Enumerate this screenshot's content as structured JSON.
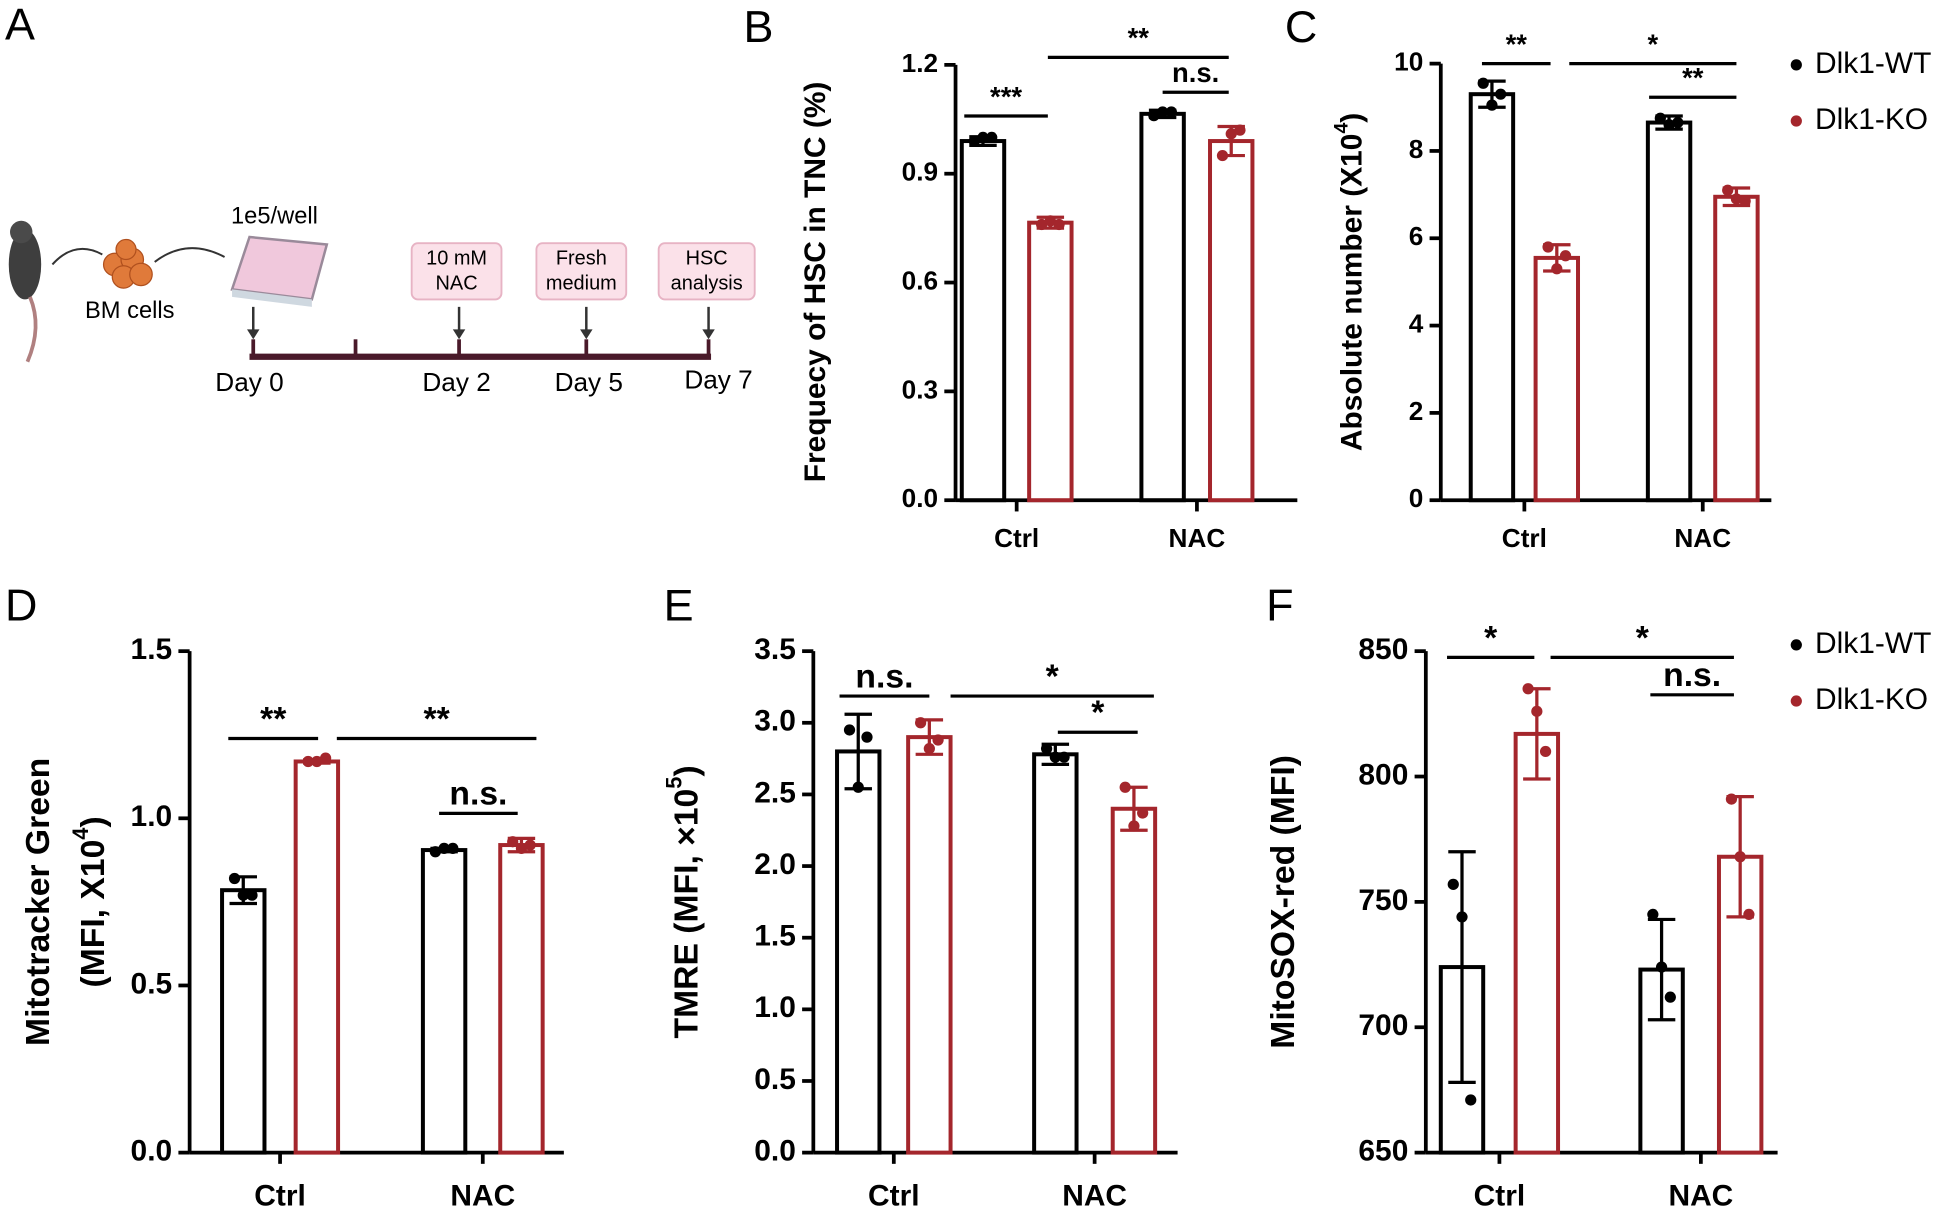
{
  "diagram": {
    "label": "A",
    "plate": "1e5/well",
    "cells": "BM cells",
    "steps": [
      [
        "10 mM",
        "NAC"
      ],
      [
        "Fresh",
        "medium"
      ],
      [
        "HSC",
        "analysis"
      ]
    ],
    "days": [
      "Day 0",
      "Day 2",
      "Day 5",
      "Day 7"
    ]
  },
  "chart_data": [
    {
      "type": "bar",
      "panel": "B",
      "ylabel": [
        [
          "Frequecy of HSC in TNC (%)"
        ]
      ],
      "categories": [
        "Ctrl",
        "NAC"
      ],
      "ylim": [
        0,
        1.2
      ],
      "yticks": [
        {
          "value": 0,
          "label": "0.0"
        },
        0.3,
        0.6,
        0.9,
        1.2
      ],
      "series": [
        {
          "color": "#000000",
          "values": [
            0.99,
            1.065
          ],
          "errors": [
            0.012,
            0.01
          ],
          "points": [
            [
              0.99,
              1.0,
              1.0
            ],
            [
              1.06,
              1.07,
              1.07
            ]
          ]
        },
        {
          "color": "#a4262c",
          "values": [
            0.765,
            0.99
          ],
          "errors": [
            0.015,
            0.04
          ],
          "points": [
            [
              0.76,
              0.77,
              0.76
            ],
            [
              0.95,
              1.01,
              1.02
            ]
          ]
        }
      ],
      "annotations": [
        "***",
        "**",
        "n.s."
      ]
    },
    {
      "type": "bar",
      "panel": "C",
      "ylabel": [
        [
          "Absolute number (X10",
          "4",
          ")"
        ]
      ],
      "categories": [
        "Ctrl",
        "NAC"
      ],
      "ylim": [
        0,
        10
      ],
      "yticks": [
        0,
        2,
        4,
        6,
        8,
        10
      ],
      "series": [
        {
          "name": "Dlk1-WT",
          "color": "#000000",
          "values": [
            9.3,
            8.65
          ],
          "errors": [
            0.3,
            0.15
          ],
          "points": [
            [
              9.55,
              9.05,
              9.3
            ],
            [
              8.75,
              8.6,
              8.65
            ]
          ]
        },
        {
          "name": "Dlk1-KO",
          "color": "#a4262c",
          "values": [
            5.55,
            6.95
          ],
          "errors": [
            0.3,
            0.2
          ],
          "points": [
            [
              5.8,
              5.3,
              5.6
            ],
            [
              7.1,
              6.9,
              6.85
            ]
          ]
        }
      ],
      "annotations": [
        "**",
        "*",
        "**"
      ]
    },
    {
      "type": "bar",
      "panel": "D",
      "ylabel": [
        [
          "Mitotracker Green"
        ],
        [
          "(MFI, X10",
          "4",
          ")"
        ]
      ],
      "categories": [
        "Ctrl",
        "NAC"
      ],
      "ylim": [
        0,
        1.5
      ],
      "yticks": [
        {
          "value": 0,
          "label": "0.0"
        },
        0.5,
        {
          "value": 1,
          "label": "1.0"
        },
        1.5
      ],
      "series": [
        {
          "color": "#000000",
          "values": [
            0.785,
            0.905
          ],
          "errors": [
            0.04,
            0.005
          ],
          "points": [
            [
              0.82,
              0.77,
              0.77
            ],
            [
              0.9,
              0.91,
              0.91
            ]
          ]
        },
        {
          "color": "#a4262c",
          "values": [
            1.17,
            0.92
          ],
          "errors": [
            0.005,
            0.02
          ],
          "points": [
            [
              1.17,
              1.17,
              1.18
            ],
            [
              0.93,
              0.91,
              0.92
            ]
          ]
        }
      ],
      "annotations": [
        "**",
        "**",
        "n.s."
      ]
    },
    {
      "type": "bar",
      "panel": "E",
      "ylabel": [
        [
          "TMRE (MFI, ×10",
          "5",
          ")"
        ]
      ],
      "categories": [
        "Ctrl",
        "NAC"
      ],
      "ylim": [
        0,
        3.5
      ],
      "yticks": [
        {
          "value": 0,
          "label": "0.0"
        },
        0.5,
        {
          "value": 1,
          "label": "1.0"
        },
        1.5,
        {
          "value": 2,
          "label": "2.0"
        },
        2.5,
        {
          "value": 3,
          "label": "3.0"
        },
        3.5
      ],
      "series": [
        {
          "color": "#000000",
          "values": [
            2.8,
            2.78
          ],
          "errors": [
            0.26,
            0.07
          ],
          "points": [
            [
              2.95,
              2.55,
              2.9
            ],
            [
              2.82,
              2.76,
              2.76
            ]
          ]
        },
        {
          "color": "#a4262c",
          "values": [
            2.9,
            2.4
          ],
          "errors": [
            0.12,
            0.15
          ],
          "points": [
            [
              3.0,
              2.82,
              2.88
            ],
            [
              2.55,
              2.28,
              2.37
            ]
          ]
        }
      ],
      "annotations": [
        "n.s.",
        "*",
        "*"
      ]
    },
    {
      "type": "bar",
      "panel": "F",
      "ylabel": [
        [
          "MitoSOX-red (MFI)"
        ]
      ],
      "categories": [
        "Ctrl",
        "NAC"
      ],
      "ylim": [
        650,
        850
      ],
      "yticks": [
        650,
        700,
        750,
        800,
        850
      ],
      "series": [
        {
          "name": "Dlk1-WT",
          "color": "#000000",
          "values": [
            724,
            723
          ],
          "errors": [
            46,
            20
          ],
          "points": [
            [
              757,
              744,
              671
            ],
            [
              745,
              724,
              712
            ]
          ]
        },
        {
          "name": "Dlk1-KO",
          "color": "#a4262c",
          "values": [
            817,
            768
          ],
          "errors": [
            18,
            24
          ],
          "points": [
            [
              835,
              826,
              810
            ],
            [
              791,
              768,
              745
            ]
          ]
        }
      ],
      "annotations": [
        "*",
        "*",
        "n.s."
      ]
    }
  ]
}
